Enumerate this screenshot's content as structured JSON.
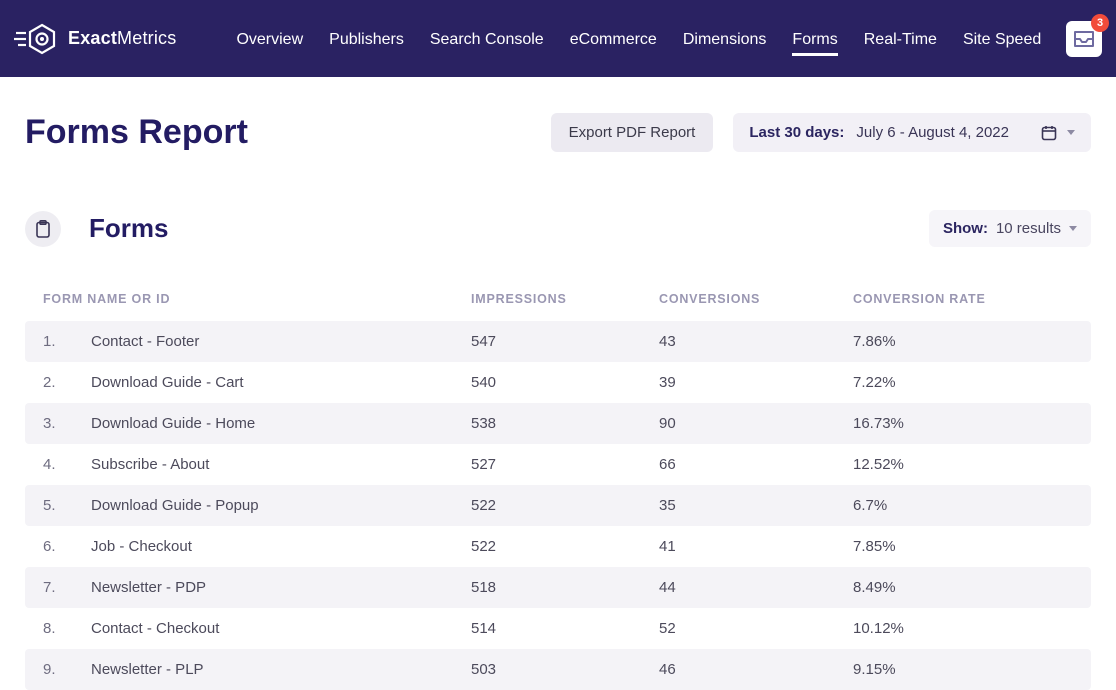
{
  "brand": {
    "bold": "Exact",
    "light": "Metrics"
  },
  "nav": {
    "items": [
      "Overview",
      "Publishers",
      "Search Console",
      "eCommerce",
      "Dimensions",
      "Forms",
      "Real-Time",
      "Site Speed"
    ],
    "activeIndex": 5
  },
  "inbox": {
    "badge": "3"
  },
  "header": {
    "title": "Forms Report",
    "export_label": "Export PDF Report",
    "date_label": "Last 30 days:",
    "date_range": "July 6 - August 4, 2022"
  },
  "section": {
    "title": "Forms",
    "show_label": "Show",
    "show_value": "10 results"
  },
  "table": {
    "columns": {
      "name": "Form Name or ID",
      "impressions": "Impressions",
      "conversions": "Conversions",
      "rate": "Conversion Rate"
    },
    "rows": [
      {
        "idx": "1.",
        "name": "Contact - Footer",
        "impressions": "547",
        "conversions": "43",
        "rate": "7.86%"
      },
      {
        "idx": "2.",
        "name": "Download Guide - Cart",
        "impressions": "540",
        "conversions": "39",
        "rate": "7.22%"
      },
      {
        "idx": "3.",
        "name": "Download Guide - Home",
        "impressions": "538",
        "conversions": "90",
        "rate": "16.73%"
      },
      {
        "idx": "4.",
        "name": "Subscribe - About",
        "impressions": "527",
        "conversions": "66",
        "rate": "12.52%"
      },
      {
        "idx": "5.",
        "name": "Download Guide - Popup",
        "impressions": "522",
        "conversions": "35",
        "rate": "6.7%"
      },
      {
        "idx": "6.",
        "name": "Job - Checkout",
        "impressions": "522",
        "conversions": "41",
        "rate": "7.85%"
      },
      {
        "idx": "7.",
        "name": "Newsletter - PDP",
        "impressions": "518",
        "conversions": "44",
        "rate": "8.49%"
      },
      {
        "idx": "8.",
        "name": "Contact - Checkout",
        "impressions": "514",
        "conversions": "52",
        "rate": "10.12%"
      },
      {
        "idx": "9.",
        "name": "Newsletter - PLP",
        "impressions": "503",
        "conversions": "46",
        "rate": "9.15%"
      }
    ]
  },
  "colors": {
    "topbar_bg": "#2a2262",
    "accent": "#f24b3a",
    "title": "#231c63",
    "muted": "#9a97b2",
    "row_stripe": "#f4f3f7",
    "panel": "#f2f0f6"
  }
}
